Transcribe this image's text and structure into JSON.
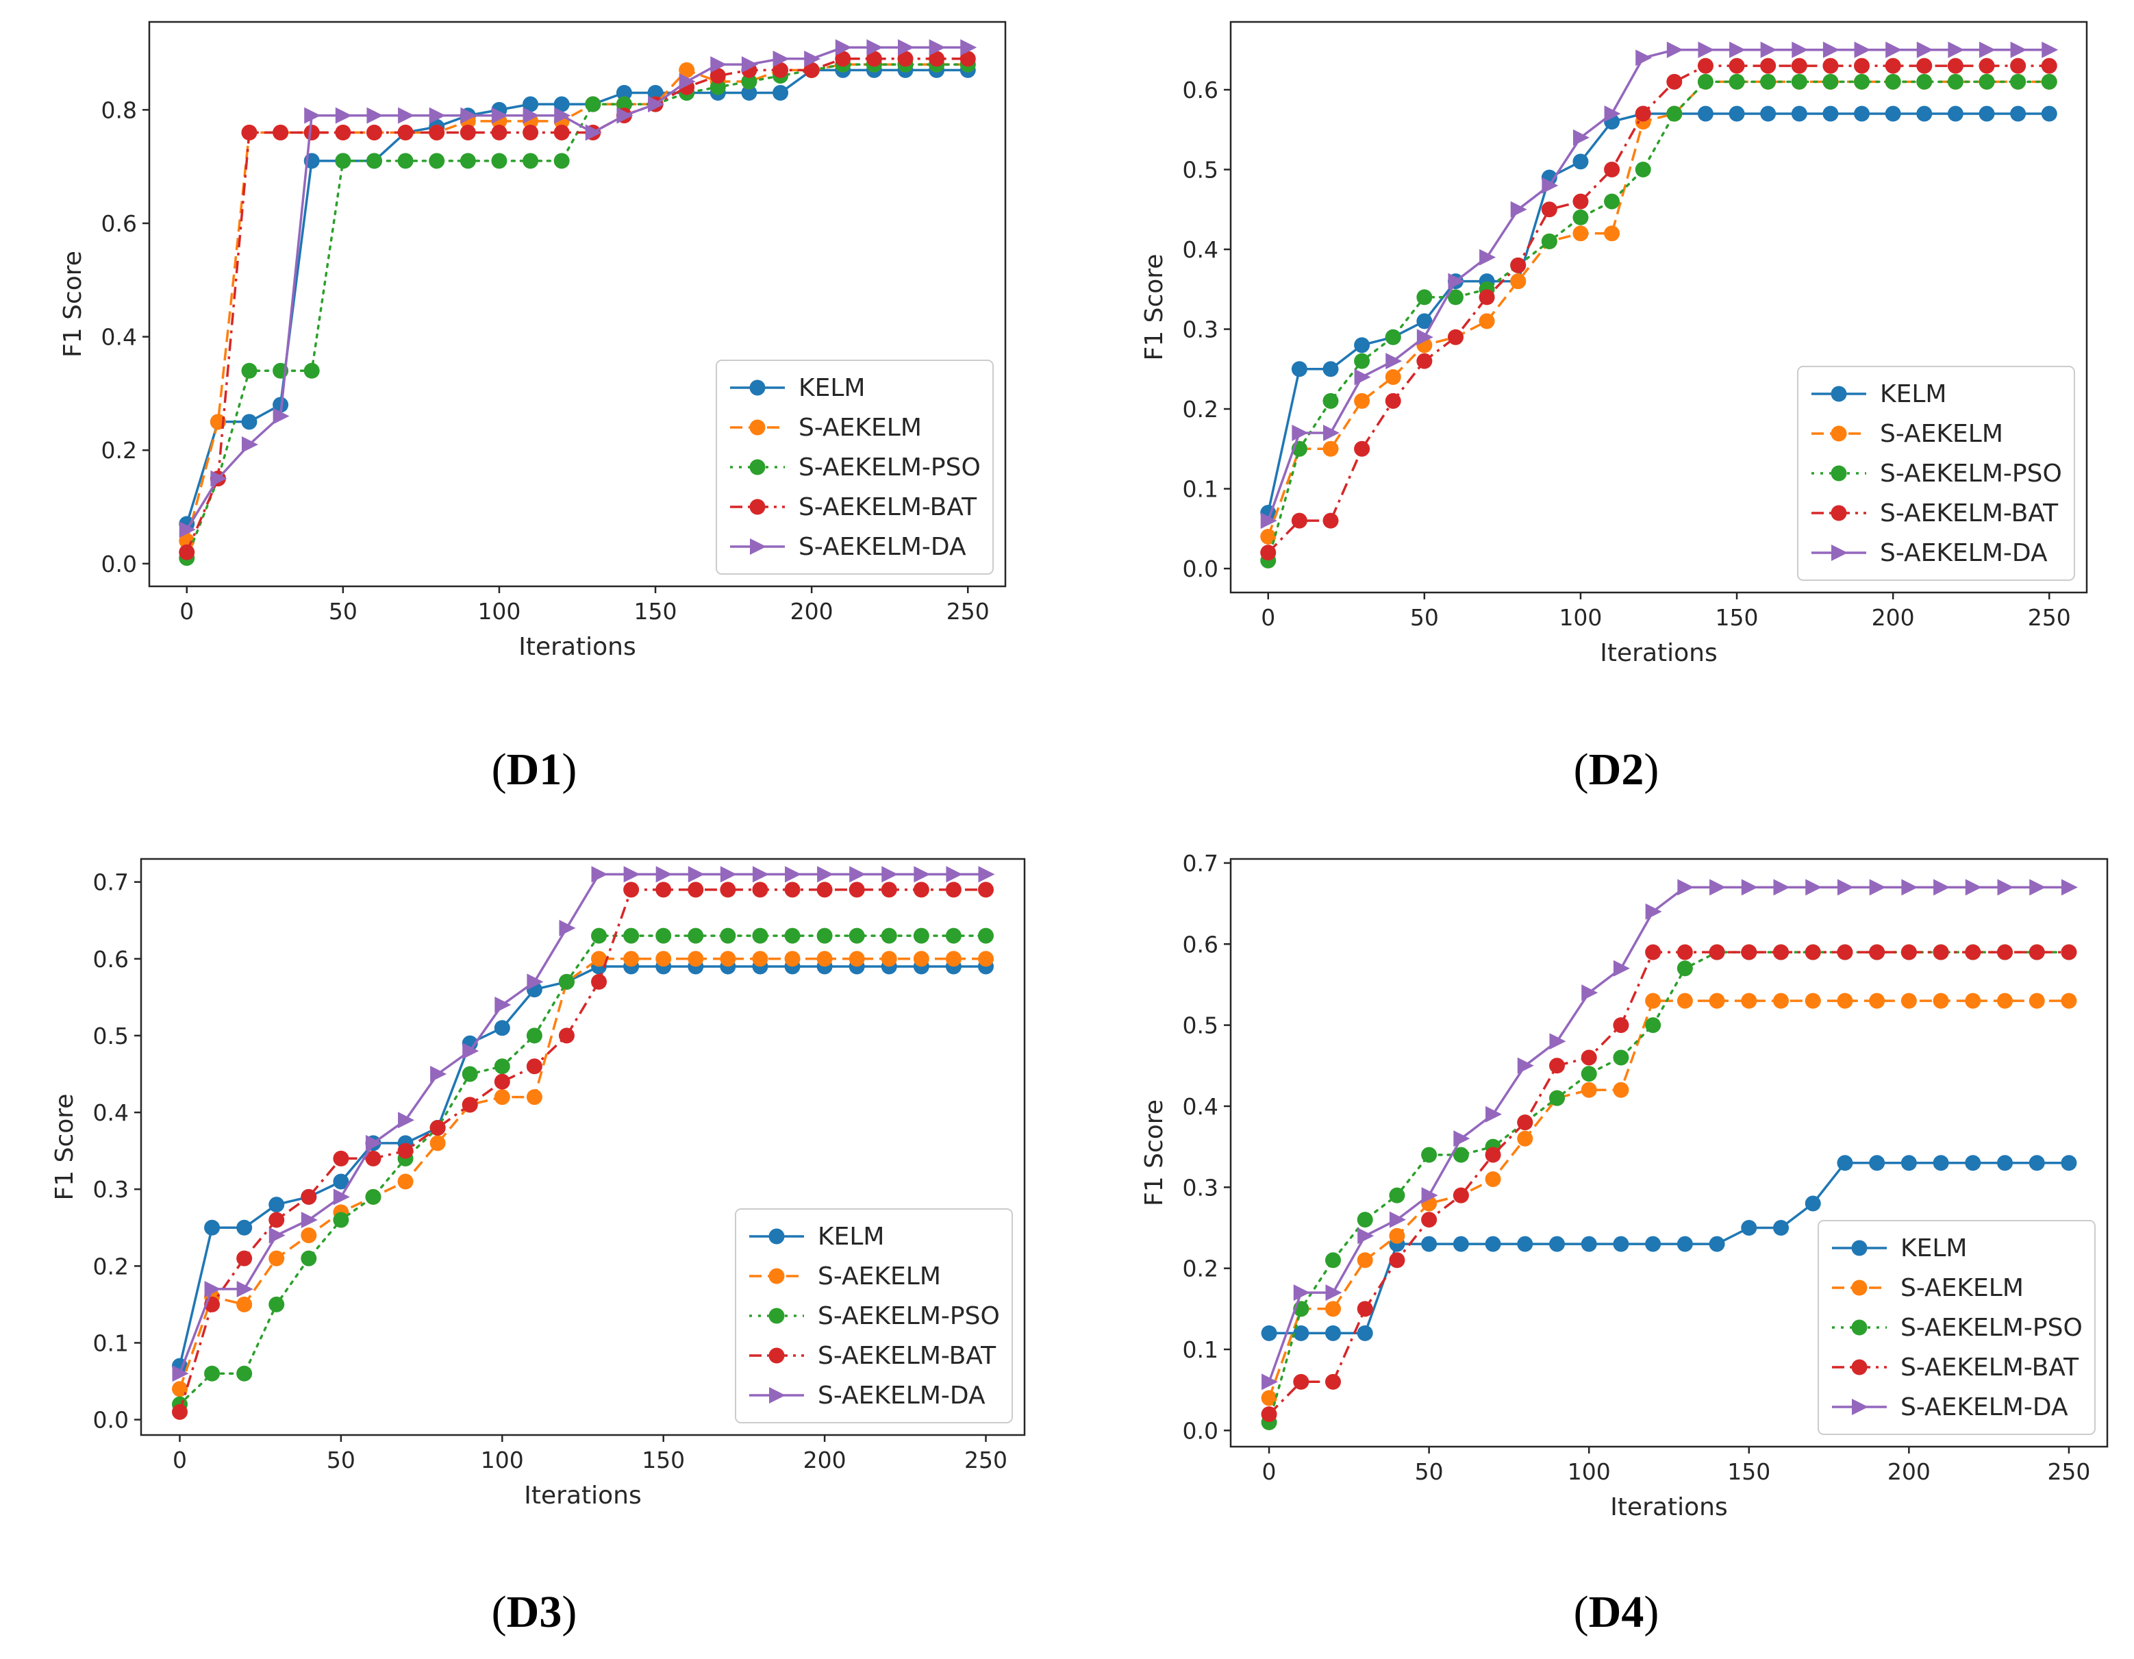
{
  "colors": {
    "KELM": "#1f77b4",
    "S-AEKELM": "#ff7f0e",
    "S-AEKELM-PSO": "#2ca02c",
    "S-AEKELM-BAT": "#d62728",
    "S-AEKELM-DA": "#9467bd"
  },
  "chart_data": [
    {
      "type": "line",
      "panel": "D1",
      "caption": {
        "open": "(",
        "label": "D1",
        "close": ")"
      },
      "xlabel": "Iterations",
      "ylabel": "F1 Score",
      "xlim": [
        -12,
        262
      ],
      "ylim": [
        -0.04,
        0.955
      ],
      "xticks": [
        0,
        50,
        100,
        150,
        200,
        250
      ],
      "yticks": [
        0.0,
        0.2,
        0.4,
        0.6,
        0.8
      ],
      "ytick_labels": [
        "0.0",
        "0.2",
        "0.4",
        "0.6",
        "0.8"
      ],
      "legend_position": "lower-right",
      "x": [
        0,
        10,
        20,
        30,
        40,
        50,
        60,
        70,
        80,
        90,
        100,
        110,
        120,
        130,
        140,
        150,
        160,
        170,
        180,
        190,
        200,
        210,
        220,
        230,
        240,
        250
      ],
      "series": [
        {
          "name": "KELM",
          "marker": "circle",
          "linestyle": "solid",
          "values": [
            0.07,
            0.25,
            0.25,
            0.28,
            0.71,
            0.71,
            0.71,
            0.76,
            0.77,
            0.79,
            0.8,
            0.81,
            0.81,
            0.81,
            0.83,
            0.83,
            0.83,
            0.83,
            0.83,
            0.83,
            0.87,
            0.87,
            0.87,
            0.87,
            0.87,
            0.87
          ]
        },
        {
          "name": "S-AEKELM",
          "marker": "circle",
          "linestyle": "dashed",
          "values": [
            0.04,
            0.25,
            0.76,
            0.76,
            0.76,
            0.76,
            0.76,
            0.76,
            0.76,
            0.78,
            0.78,
            0.78,
            0.78,
            0.81,
            0.81,
            0.81,
            0.87,
            0.85,
            0.85,
            0.87,
            0.87,
            0.88,
            0.88,
            0.88,
            0.88,
            0.88
          ]
        },
        {
          "name": "S-AEKELM-PSO",
          "marker": "circle",
          "linestyle": "dotted",
          "values": [
            0.01,
            0.15,
            0.34,
            0.34,
            0.34,
            0.71,
            0.71,
            0.71,
            0.71,
            0.71,
            0.71,
            0.71,
            0.71,
            0.81,
            0.81,
            0.81,
            0.83,
            0.84,
            0.85,
            0.86,
            0.87,
            0.88,
            0.88,
            0.88,
            0.88,
            0.88
          ]
        },
        {
          "name": "S-AEKELM-BAT",
          "marker": "circle",
          "linestyle": "dashdot",
          "values": [
            0.02,
            0.15,
            0.76,
            0.76,
            0.76,
            0.76,
            0.76,
            0.76,
            0.76,
            0.76,
            0.76,
            0.76,
            0.76,
            0.76,
            0.79,
            0.81,
            0.84,
            0.86,
            0.87,
            0.87,
            0.87,
            0.89,
            0.89,
            0.89,
            0.89,
            0.89
          ]
        },
        {
          "name": "S-AEKELM-DA",
          "marker": "triangle-right",
          "linestyle": "solid",
          "values": [
            0.06,
            0.15,
            0.21,
            0.26,
            0.79,
            0.79,
            0.79,
            0.79,
            0.79,
            0.79,
            0.79,
            0.79,
            0.79,
            0.76,
            0.79,
            0.81,
            0.85,
            0.88,
            0.88,
            0.89,
            0.89,
            0.91,
            0.91,
            0.91,
            0.91,
            0.91
          ]
        }
      ]
    },
    {
      "type": "line",
      "panel": "D2",
      "caption": {
        "open": "(",
        "label": "D2",
        "close": ")"
      },
      "xlabel": "Iterations",
      "ylabel": "F1 Score",
      "xlim": [
        -12,
        262
      ],
      "ylim": [
        -0.03,
        0.685
      ],
      "xticks": [
        0,
        50,
        100,
        150,
        200,
        250
      ],
      "yticks": [
        0.0,
        0.1,
        0.2,
        0.3,
        0.4,
        0.5,
        0.6
      ],
      "ytick_labels": [
        "0.0",
        "0.1",
        "0.2",
        "0.3",
        "0.4",
        "0.5",
        "0.6"
      ],
      "legend_position": "lower-right",
      "x": [
        0,
        10,
        20,
        30,
        40,
        50,
        60,
        70,
        80,
        90,
        100,
        110,
        120,
        130,
        140,
        150,
        160,
        170,
        180,
        190,
        200,
        210,
        220,
        230,
        240,
        250
      ],
      "series": [
        {
          "name": "KELM",
          "marker": "circle",
          "linestyle": "solid",
          "values": [
            0.07,
            0.25,
            0.25,
            0.28,
            0.29,
            0.31,
            0.36,
            0.36,
            0.36,
            0.49,
            0.51,
            0.56,
            0.57,
            0.57,
            0.57,
            0.57,
            0.57,
            0.57,
            0.57,
            0.57,
            0.57,
            0.57,
            0.57,
            0.57,
            0.57,
            0.57
          ]
        },
        {
          "name": "S-AEKELM",
          "marker": "circle",
          "linestyle": "dashed",
          "values": [
            0.04,
            0.15,
            0.15,
            0.21,
            0.24,
            0.28,
            0.29,
            0.31,
            0.36,
            0.41,
            0.42,
            0.42,
            0.56,
            0.57,
            0.61,
            0.61,
            0.61,
            0.61,
            0.61,
            0.61,
            0.61,
            0.61,
            0.61,
            0.61,
            0.61,
            0.61
          ]
        },
        {
          "name": "S-AEKELM-PSO",
          "marker": "circle",
          "linestyle": "dotted",
          "values": [
            0.01,
            0.15,
            0.21,
            0.26,
            0.29,
            0.34,
            0.34,
            0.35,
            0.38,
            0.41,
            0.44,
            0.46,
            0.5,
            0.57,
            0.61,
            0.61,
            0.61,
            0.61,
            0.61,
            0.61,
            0.61,
            0.61,
            0.61,
            0.61,
            0.61,
            0.61
          ]
        },
        {
          "name": "S-AEKELM-BAT",
          "marker": "circle",
          "linestyle": "dashdot",
          "values": [
            0.02,
            0.06,
            0.06,
            0.15,
            0.21,
            0.26,
            0.29,
            0.34,
            0.38,
            0.45,
            0.46,
            0.5,
            0.57,
            0.61,
            0.63,
            0.63,
            0.63,
            0.63,
            0.63,
            0.63,
            0.63,
            0.63,
            0.63,
            0.63,
            0.63,
            0.63
          ]
        },
        {
          "name": "S-AEKELM-DA",
          "marker": "triangle-right",
          "linestyle": "solid",
          "values": [
            0.06,
            0.17,
            0.17,
            0.24,
            0.26,
            0.29,
            0.36,
            0.39,
            0.45,
            0.48,
            0.54,
            0.57,
            0.64,
            0.65,
            0.65,
            0.65,
            0.65,
            0.65,
            0.65,
            0.65,
            0.65,
            0.65,
            0.65,
            0.65,
            0.65,
            0.65
          ]
        }
      ]
    },
    {
      "type": "line",
      "panel": "D3",
      "caption": {
        "open": "(",
        "label": "D3",
        "close": ")"
      },
      "xlabel": "Iterations",
      "ylabel": "F1 Score",
      "xlim": [
        -12,
        262
      ],
      "ylim": [
        -0.02,
        0.73
      ],
      "xticks": [
        0,
        50,
        100,
        150,
        200,
        250
      ],
      "yticks": [
        0.0,
        0.1,
        0.2,
        0.3,
        0.4,
        0.5,
        0.6,
        0.7
      ],
      "ytick_labels": [
        "0.0",
        "0.1",
        "0.2",
        "0.3",
        "0.4",
        "0.5",
        "0.6",
        "0.7"
      ],
      "legend_position": "lower-right",
      "x": [
        0,
        10,
        20,
        30,
        40,
        50,
        60,
        70,
        80,
        90,
        100,
        110,
        120,
        130,
        140,
        150,
        160,
        170,
        180,
        190,
        200,
        210,
        220,
        230,
        240,
        250
      ],
      "series": [
        {
          "name": "KELM",
          "marker": "circle",
          "linestyle": "solid",
          "values": [
            0.07,
            0.25,
            0.25,
            0.28,
            0.29,
            0.31,
            0.36,
            0.36,
            0.38,
            0.49,
            0.51,
            0.56,
            0.57,
            0.59,
            0.59,
            0.59,
            0.59,
            0.59,
            0.59,
            0.59,
            0.59,
            0.59,
            0.59,
            0.59,
            0.59,
            0.59
          ]
        },
        {
          "name": "S-AEKELM",
          "marker": "circle",
          "linestyle": "dashed",
          "values": [
            0.04,
            0.16,
            0.15,
            0.21,
            0.24,
            0.27,
            0.29,
            0.31,
            0.36,
            0.41,
            0.42,
            0.42,
            0.57,
            0.6,
            0.6,
            0.6,
            0.6,
            0.6,
            0.6,
            0.6,
            0.6,
            0.6,
            0.6,
            0.6,
            0.6,
            0.6
          ]
        },
        {
          "name": "S-AEKELM-PSO",
          "marker": "circle",
          "linestyle": "dotted",
          "values": [
            0.02,
            0.06,
            0.06,
            0.15,
            0.21,
            0.26,
            0.29,
            0.34,
            0.38,
            0.45,
            0.46,
            0.5,
            0.57,
            0.63,
            0.63,
            0.63,
            0.63,
            0.63,
            0.63,
            0.63,
            0.63,
            0.63,
            0.63,
            0.63,
            0.63,
            0.63
          ]
        },
        {
          "name": "S-AEKELM-BAT",
          "marker": "circle",
          "linestyle": "dashdot",
          "values": [
            0.01,
            0.15,
            0.21,
            0.26,
            0.29,
            0.34,
            0.34,
            0.35,
            0.38,
            0.41,
            0.44,
            0.46,
            0.5,
            0.57,
            0.69,
            0.69,
            0.69,
            0.69,
            0.69,
            0.69,
            0.69,
            0.69,
            0.69,
            0.69,
            0.69,
            0.69
          ]
        },
        {
          "name": "S-AEKELM-DA",
          "marker": "triangle-right",
          "linestyle": "solid",
          "values": [
            0.06,
            0.17,
            0.17,
            0.24,
            0.26,
            0.29,
            0.36,
            0.39,
            0.45,
            0.48,
            0.54,
            0.57,
            0.64,
            0.71,
            0.71,
            0.71,
            0.71,
            0.71,
            0.71,
            0.71,
            0.71,
            0.71,
            0.71,
            0.71,
            0.71,
            0.71
          ]
        }
      ]
    },
    {
      "type": "line",
      "panel": "D4",
      "caption": {
        "open": "(",
        "label": "D4",
        "close": ")"
      },
      "xlabel": "Iterations",
      "ylabel": "F1 Score",
      "xlim": [
        -12,
        262
      ],
      "ylim": [
        -0.02,
        0.705
      ],
      "xticks": [
        0,
        50,
        100,
        150,
        200,
        250
      ],
      "yticks": [
        0.0,
        0.1,
        0.2,
        0.3,
        0.4,
        0.5,
        0.6,
        0.7
      ],
      "ytick_labels": [
        "0.0",
        "0.1",
        "0.2",
        "0.3",
        "0.4",
        "0.5",
        "0.6",
        "0.7"
      ],
      "legend_position": "lower-right",
      "x": [
        0,
        10,
        20,
        30,
        40,
        50,
        60,
        70,
        80,
        90,
        100,
        110,
        120,
        130,
        140,
        150,
        160,
        170,
        180,
        190,
        200,
        210,
        220,
        230,
        240,
        250
      ],
      "series": [
        {
          "name": "KELM",
          "marker": "circle",
          "linestyle": "solid",
          "values": [
            0.12,
            0.12,
            0.12,
            0.12,
            0.23,
            0.23,
            0.23,
            0.23,
            0.23,
            0.23,
            0.23,
            0.23,
            0.23,
            0.23,
            0.23,
            0.25,
            0.25,
            0.28,
            0.33,
            0.33,
            0.33,
            0.33,
            0.33,
            0.33,
            0.33,
            0.33
          ]
        },
        {
          "name": "S-AEKELM",
          "marker": "circle",
          "linestyle": "dashed",
          "values": [
            0.04,
            0.15,
            0.15,
            0.21,
            0.24,
            0.28,
            0.29,
            0.31,
            0.36,
            0.41,
            0.42,
            0.42,
            0.53,
            0.53,
            0.53,
            0.53,
            0.53,
            0.53,
            0.53,
            0.53,
            0.53,
            0.53,
            0.53,
            0.53,
            0.53,
            0.53
          ]
        },
        {
          "name": "S-AEKELM-PSO",
          "marker": "circle",
          "linestyle": "dotted",
          "values": [
            0.01,
            0.15,
            0.21,
            0.26,
            0.29,
            0.34,
            0.34,
            0.35,
            0.38,
            0.41,
            0.44,
            0.46,
            0.5,
            0.57,
            0.59,
            0.59,
            0.59,
            0.59,
            0.59,
            0.59,
            0.59,
            0.59,
            0.59,
            0.59,
            0.59,
            0.59
          ]
        },
        {
          "name": "S-AEKELM-BAT",
          "marker": "circle",
          "linestyle": "dashdot",
          "values": [
            0.02,
            0.06,
            0.06,
            0.15,
            0.21,
            0.26,
            0.29,
            0.34,
            0.38,
            0.45,
            0.46,
            0.5,
            0.59,
            0.59,
            0.59,
            0.59,
            0.59,
            0.59,
            0.59,
            0.59,
            0.59,
            0.59,
            0.59,
            0.59,
            0.59,
            0.59
          ]
        },
        {
          "name": "S-AEKELM-DA",
          "marker": "triangle-right",
          "linestyle": "solid",
          "values": [
            0.06,
            0.17,
            0.17,
            0.24,
            0.26,
            0.29,
            0.36,
            0.39,
            0.45,
            0.48,
            0.54,
            0.57,
            0.64,
            0.67,
            0.67,
            0.67,
            0.67,
            0.67,
            0.67,
            0.67,
            0.67,
            0.67,
            0.67,
            0.67,
            0.67,
            0.67
          ]
        }
      ]
    }
  ]
}
